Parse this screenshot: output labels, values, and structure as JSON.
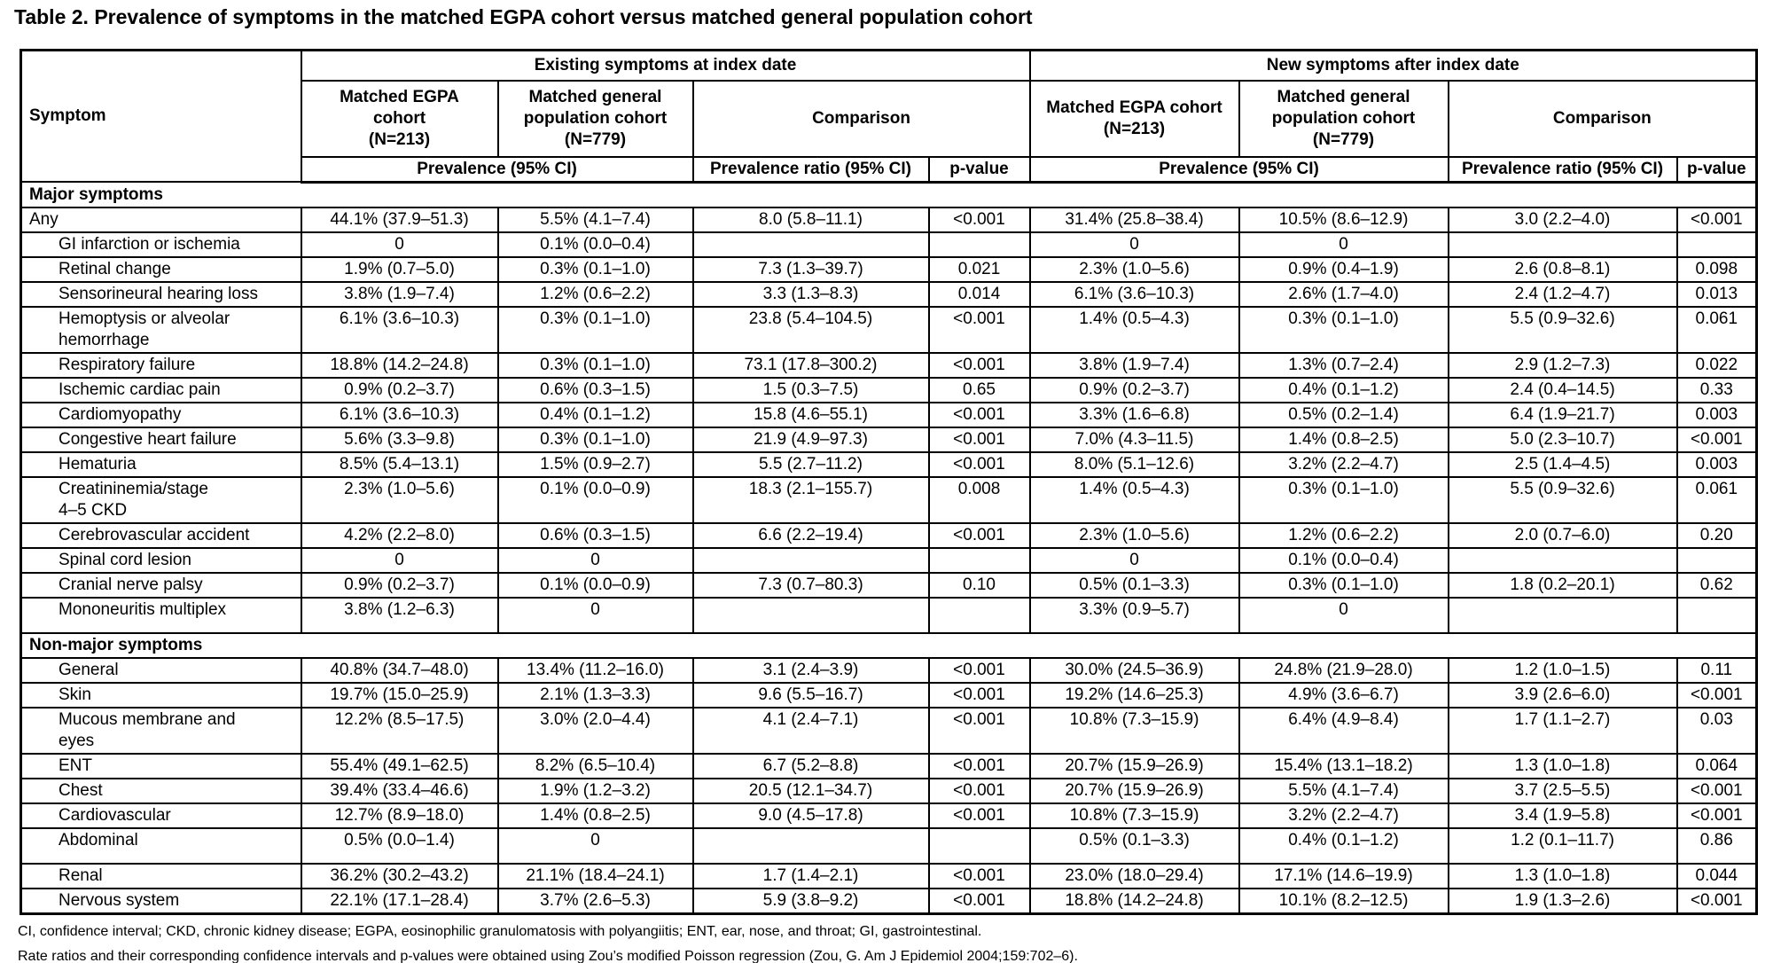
{
  "title": "Table 2. Prevalence of symptoms in the matched EGPA cohort versus matched general population cohort",
  "table": {
    "header": {
      "symptom": "Symptom",
      "group_existing": "Existing symptoms at index date",
      "group_new": "New symptoms after index date",
      "existing_egpa": "Matched EGPA\ncohort\n(N=213)",
      "existing_general": "Matched general\npopulation cohort\n(N=779)",
      "existing_comparison": "Comparison",
      "new_egpa": "Matched EGPA cohort\n(N=213)",
      "new_general": "Matched general\npopulation cohort\n(N=779)",
      "new_comparison": "Comparison",
      "prevalence_existing": "Prevalence (95% CI)",
      "prevalence_ratio_existing": "Prevalence ratio (95% CI)",
      "p_value_existing": "p-value",
      "prevalence_new": "Prevalence (95% CI)",
      "prevalence_ratio_new": "Prevalence ratio (95% CI)",
      "p_value_new": "p-value"
    },
    "sections": [
      {
        "label": "Major symptoms",
        "rows": [
          {
            "symptom": "Any",
            "indent": false,
            "tall": false,
            "values": [
              "44.1% (37.9–51.3)",
              "5.5% (4.1–7.4)",
              "8.0 (5.8–11.1)",
              "<0.001",
              "31.4% (25.8–38.4)",
              "10.5% (8.6–12.9)",
              "3.0 (2.2–4.0)",
              "<0.001"
            ]
          },
          {
            "symptom": "GI infarction or ischemia",
            "indent": true,
            "tall": false,
            "values": [
              "0",
              "0.1% (0.0–0.4)",
              "",
              "",
              "0",
              "0",
              "",
              ""
            ]
          },
          {
            "symptom": "Retinal change",
            "indent": true,
            "tall": false,
            "values": [
              "1.9% (0.7–5.0)",
              "0.3% (0.1–1.0)",
              "7.3 (1.3–39.7)",
              "0.021",
              "2.3% (1.0–5.6)",
              "0.9% (0.4–1.9)",
              "2.6 (0.8–8.1)",
              "0.098"
            ]
          },
          {
            "symptom": "Sensorineural hearing loss",
            "indent": true,
            "tall": false,
            "values": [
              "3.8% (1.9–7.4)",
              "1.2% (0.6–2.2)",
              "3.3 (1.3–8.3)",
              "0.014",
              "6.1% (3.6–10.3)",
              "2.6% (1.7–4.0)",
              "2.4 (1.2–4.7)",
              "0.013"
            ]
          },
          {
            "symptom": "Hemoptysis or alveolar\nhemorrhage",
            "indent": true,
            "tall": false,
            "values": [
              "6.1% (3.6–10.3)",
              "0.3% (0.1–1.0)",
              "23.8 (5.4–104.5)",
              "<0.001",
              "1.4% (0.5–4.3)",
              "0.3% (0.1–1.0)",
              "5.5 (0.9–32.6)",
              "0.061"
            ]
          },
          {
            "symptom": "Respiratory failure",
            "indent": true,
            "tall": false,
            "values": [
              "18.8% (14.2–24.8)",
              "0.3% (0.1–1.0)",
              "73.1 (17.8–300.2)",
              "<0.001",
              "3.8% (1.9–7.4)",
              "1.3% (0.7–2.4)",
              "2.9 (1.2–7.3)",
              "0.022"
            ]
          },
          {
            "symptom": "Ischemic cardiac pain",
            "indent": true,
            "tall": false,
            "values": [
              "0.9% (0.2–3.7)",
              "0.6% (0.3–1.5)",
              "1.5 (0.3–7.5)",
              "0.65",
              "0.9% (0.2–3.7)",
              "0.4% (0.1–1.2)",
              "2.4 (0.4–14.5)",
              "0.33"
            ]
          },
          {
            "symptom": "Cardiomyopathy",
            "indent": true,
            "tall": false,
            "values": [
              "6.1% (3.6–10.3)",
              "0.4% (0.1–1.2)",
              "15.8 (4.6–55.1)",
              "<0.001",
              "3.3% (1.6–6.8)",
              "0.5% (0.2–1.4)",
              "6.4 (1.9–21.7)",
              "0.003"
            ]
          },
          {
            "symptom": "Congestive heart failure",
            "indent": true,
            "tall": false,
            "values": [
              "5.6% (3.3–9.8)",
              "0.3% (0.1–1.0)",
              "21.9 (4.9–97.3)",
              "<0.001",
              "7.0% (4.3–11.5)",
              "1.4% (0.8–2.5)",
              "5.0 (2.3–10.7)",
              "<0.001"
            ]
          },
          {
            "symptom": "Hematuria",
            "indent": true,
            "tall": false,
            "values": [
              "8.5% (5.4–13.1)",
              "1.5% (0.9–2.7)",
              "5.5 (2.7–11.2)",
              "<0.001",
              "8.0% (5.1–12.6)",
              "3.2% (2.2–4.7)",
              "2.5 (1.4–4.5)",
              "0.003"
            ]
          },
          {
            "symptom": "Creatininemia/stage\n4–5 CKD",
            "indent": true,
            "tall": false,
            "values": [
              "2.3% (1.0–5.6)",
              "0.1% (0.0–0.9)",
              "18.3 (2.1–155.7)",
              "0.008",
              "1.4% (0.5–4.3)",
              "0.3% (0.1–1.0)",
              "5.5 (0.9–32.6)",
              "0.061"
            ]
          },
          {
            "symptom": "Cerebrovascular accident",
            "indent": true,
            "tall": false,
            "values": [
              "4.2% (2.2–8.0)",
              "0.6% (0.3–1.5)",
              "6.6 (2.2–19.4)",
              "<0.001",
              "2.3% (1.0–5.6)",
              "1.2% (0.6–2.2)",
              "2.0 (0.7–6.0)",
              "0.20"
            ]
          },
          {
            "symptom": "Spinal cord lesion",
            "indent": true,
            "tall": false,
            "values": [
              "0",
              "0",
              "",
              "",
              "0",
              "0.1% (0.0–0.4)",
              "",
              ""
            ]
          },
          {
            "symptom": "Cranial nerve palsy",
            "indent": true,
            "tall": false,
            "values": [
              "0.9% (0.2–3.7)",
              "0.1% (0.0–0.9)",
              "7.3 (0.7–80.3)",
              "0.10",
              "0.5% (0.1–3.3)",
              "0.3% (0.1–1.0)",
              "1.8 (0.2–20.1)",
              "0.62"
            ]
          },
          {
            "symptom": "Mononeuritis multiplex",
            "indent": true,
            "tall": true,
            "values": [
              "3.8% (1.2–6.3)",
              "0",
              "",
              "",
              "3.3% (0.9–5.7)",
              "0",
              "",
              ""
            ]
          }
        ]
      },
      {
        "label": "Non-major symptoms",
        "rows": [
          {
            "symptom": "General",
            "indent": true,
            "tall": false,
            "values": [
              "40.8% (34.7–48.0)",
              "13.4% (11.2–16.0)",
              "3.1 (2.4–3.9)",
              "<0.001",
              "30.0% (24.5–36.9)",
              "24.8% (21.9–28.0)",
              "1.2 (1.0–1.5)",
              "0.11"
            ]
          },
          {
            "symptom": "Skin",
            "indent": true,
            "tall": false,
            "values": [
              "19.7% (15.0–25.9)",
              "2.1% (1.3–3.3)",
              "9.6 (5.5–16.7)",
              "<0.001",
              "19.2% (14.6–25.3)",
              "4.9% (3.6–6.7)",
              "3.9 (2.6–6.0)",
              "<0.001"
            ]
          },
          {
            "symptom": "Mucous membrane and\neyes",
            "indent": true,
            "tall": false,
            "values": [
              "12.2% (8.5–17.5)",
              "3.0% (2.0–4.4)",
              "4.1 (2.4–7.1)",
              "<0.001",
              "10.8% (7.3–15.9)",
              "6.4% (4.9–8.4)",
              "1.7 (1.1–2.7)",
              "0.03"
            ]
          },
          {
            "symptom": "ENT",
            "indent": true,
            "tall": false,
            "values": [
              "55.4% (49.1–62.5)",
              "8.2% (6.5–10.4)",
              "6.7 (5.2–8.8)",
              "<0.001",
              "20.7% (15.9–26.9)",
              "15.4% (13.1–18.2)",
              "1.3 (1.0–1.8)",
              "0.064"
            ]
          },
          {
            "symptom": "Chest",
            "indent": true,
            "tall": false,
            "values": [
              "39.4% (33.4–46.6)",
              "1.9% (1.2–3.2)",
              "20.5 (12.1–34.7)",
              "<0.001",
              "20.7% (15.9–26.9)",
              "5.5% (4.1–7.4)",
              "3.7 (2.5–5.5)",
              "<0.001"
            ]
          },
          {
            "symptom": "Cardiovascular",
            "indent": true,
            "tall": false,
            "values": [
              "12.7% (8.9–18.0)",
              "1.4% (0.8–2.5)",
              "9.0 (4.5–17.8)",
              "<0.001",
              "10.8% (7.3–15.9)",
              "3.2% (2.2–4.7)",
              "3.4 (1.9–5.8)",
              "<0.001"
            ]
          },
          {
            "symptom": "Abdominal",
            "indent": true,
            "tall": true,
            "values": [
              "0.5% (0.0–1.4)",
              "0",
              "",
              "",
              "0.5% (0.1–3.3)",
              "0.4% (0.1–1.2)",
              "1.2 (0.1–11.7)",
              "0.86"
            ]
          },
          {
            "symptom": "Renal",
            "indent": true,
            "tall": false,
            "values": [
              "36.2% (30.2–43.2)",
              "21.1% (18.4–24.1)",
              "1.7 (1.4–2.1)",
              "<0.001",
              "23.0% (18.0–29.4)",
              "17.1% (14.6–19.9)",
              "1.3 (1.0–1.8)",
              "0.044"
            ]
          },
          {
            "symptom": "Nervous system",
            "indent": true,
            "tall": false,
            "values": [
              "22.1% (17.1–28.4)",
              "3.7% (2.6–5.3)",
              "5.9 (3.8–9.2)",
              "<0.001",
              "18.8% (14.2–24.8)",
              "10.1% (8.2–12.5)",
              "1.9 (1.3–2.6)",
              "<0.001"
            ]
          }
        ]
      }
    ]
  },
  "footnotes": [
    "CI, confidence interval; CKD, chronic kidney disease; EGPA, eosinophilic granulomatosis with polyangiitis; ENT, ear, nose, and throat; GI, gastrointestinal.",
    "Rate ratios and their corresponding confidence intervals and p-values were obtained using Zou’s modified Poisson regression (Zou, G. Am J Epidemiol 2004;159:702–6)."
  ]
}
